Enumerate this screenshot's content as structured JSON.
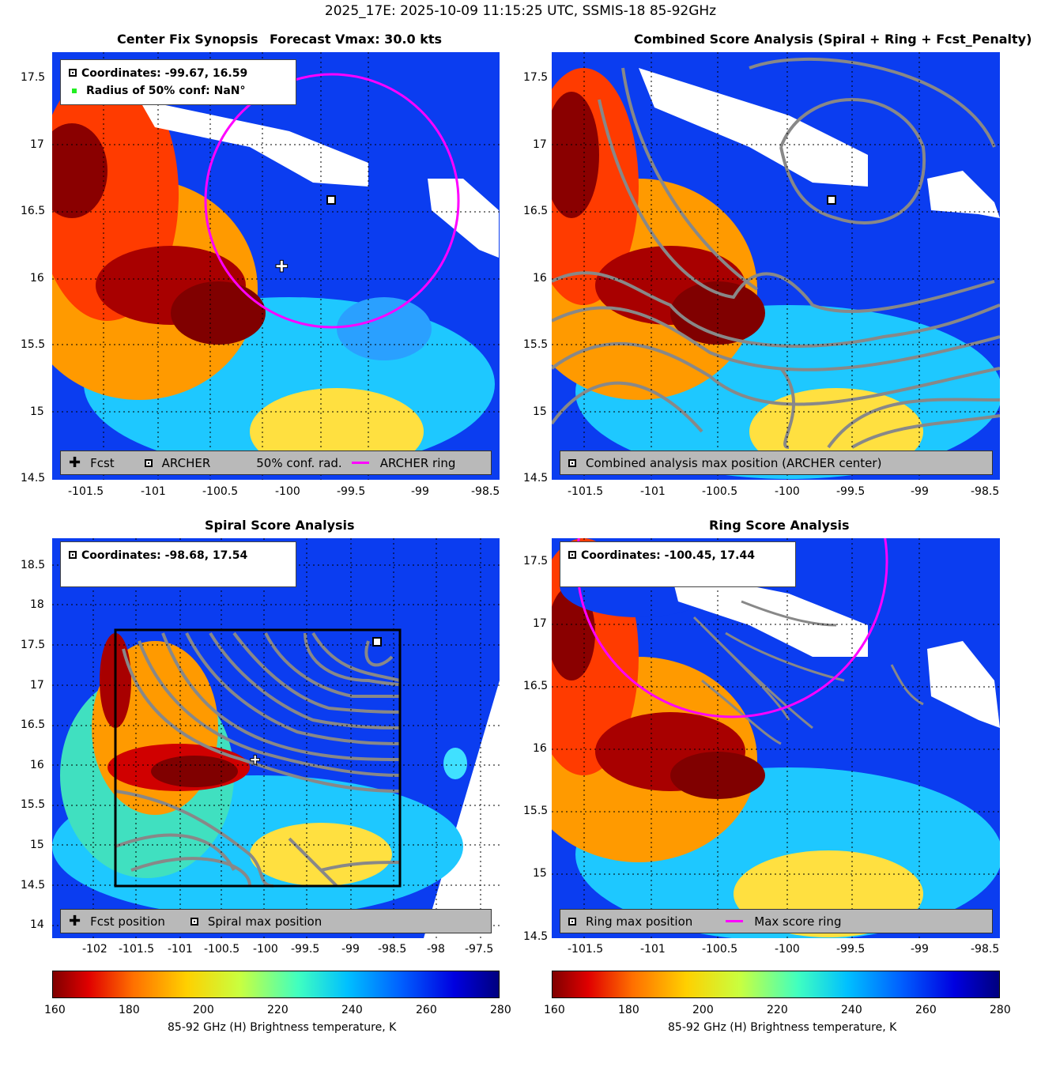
{
  "figure_title": "2025_17E: 2025-10-09 11:15:25 UTC, SSMIS-18 85-92GHz",
  "panels": {
    "synopsis": {
      "title_left": "Center Fix Synopsis",
      "title_right": "Forecast Vmax: 30.0 kts",
      "info_line1": "Coordinates: -99.67, 16.59",
      "info_line2": "Radius of 50% conf: NaN°",
      "legend": {
        "fcst": "Fcst",
        "archer": "ARCHER",
        "conf": "50% conf. rad.",
        "ring": "ARCHER ring"
      },
      "yticks": [
        "17.5",
        "17",
        "16.5",
        "16",
        "15.5",
        "15",
        "14.5"
      ],
      "xticks": [
        "-101.5",
        "-101",
        "-100.5",
        "-100",
        "-99.5",
        "-99",
        "-98.5"
      ]
    },
    "combined": {
      "title": "Combined Score Analysis (Spiral + Ring + Fcst_Penalty)",
      "legend": {
        "max": "Combined analysis max position (ARCHER center)"
      },
      "yticks": [
        "17.5",
        "17",
        "16.5",
        "16",
        "15.5",
        "15",
        "14.5"
      ],
      "xticks": [
        "-101.5",
        "-101",
        "-100.5",
        "-100",
        "-99.5",
        "-99",
        "-98.5"
      ]
    },
    "spiral": {
      "title": "Spiral Score Analysis",
      "info_line1": "Coordinates: -98.68, 17.54",
      "legend": {
        "fcst": "Fcst position",
        "max": "Spiral max position"
      },
      "yticks": [
        "18.5",
        "18",
        "17.5",
        "17",
        "16.5",
        "16",
        "15.5",
        "15",
        "14.5",
        "14"
      ],
      "xticks": [
        "-102",
        "-101.5",
        "-101",
        "-100.5",
        "-100",
        "-99.5",
        "-99",
        "-98.5",
        "-98",
        "-97.5"
      ]
    },
    "ring": {
      "title": "Ring Score Analysis",
      "info_line1": "Coordinates: -100.45, 17.44",
      "legend": {
        "max": "Ring max position",
        "ring": "Max score ring"
      },
      "yticks": [
        "17.5",
        "17",
        "16.5",
        "16",
        "15.5",
        "15",
        "14.5"
      ],
      "xticks": [
        "-101.5",
        "-101",
        "-100.5",
        "-100",
        "-99.5",
        "-99",
        "-98.5"
      ]
    }
  },
  "colorbar": {
    "label": "85-92 GHz (H) Brightness temperature, K",
    "ticks": [
      "160",
      "180",
      "200",
      "220",
      "240",
      "260",
      "280"
    ]
  }
}
